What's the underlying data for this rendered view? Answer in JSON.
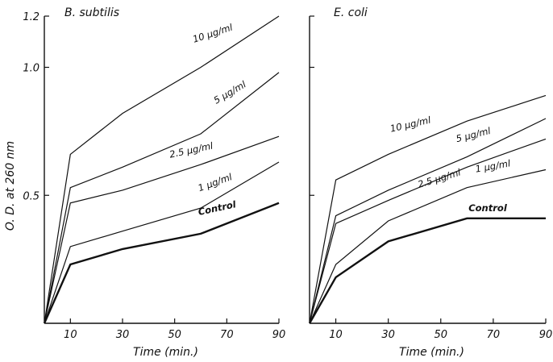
{
  "chart_data": [
    {
      "type": "line",
      "title": "B. subtilis",
      "xlabel": "Time   (min.)",
      "ylabel": "O. D.  at  260 nm",
      "xlim": [
        0,
        90
      ],
      "ylim": [
        0,
        1.2
      ],
      "x_ticks": [
        10,
        30,
        50,
        70,
        90
      ],
      "y_ticks": [
        0.5,
        1.0,
        1.2
      ],
      "y_tick_labels": [
        "0.5",
        "1.0",
        "1.2"
      ],
      "x": [
        0,
        10,
        30,
        60,
        90
      ],
      "series": [
        {
          "name": "10 μg/ml",
          "values": [
            0,
            0.66,
            0.82,
            1.0,
            1.2
          ]
        },
        {
          "name": "5 μg/ml",
          "values": [
            0,
            0.53,
            0.61,
            0.74,
            0.98
          ]
        },
        {
          "name": "2.5 μg/ml",
          "values": [
            0,
            0.47,
            0.52,
            0.62,
            0.73
          ]
        },
        {
          "name": "1 μg/ml",
          "values": [
            0,
            0.3,
            0.36,
            0.45,
            0.63
          ]
        },
        {
          "name": "Control",
          "values": [
            0,
            0.23,
            0.29,
            0.35,
            0.47
          ]
        }
      ]
    },
    {
      "type": "line",
      "title": "E. coli",
      "xlabel": "Time   (min.)",
      "ylabel": "",
      "xlim": [
        0,
        90
      ],
      "ylim": [
        0,
        1.2
      ],
      "x_ticks": [
        10,
        30,
        50,
        70,
        90
      ],
      "y_ticks": [
        0.5,
        1.0,
        1.2
      ],
      "y_tick_labels": [
        "",
        "",
        ""
      ],
      "x": [
        0,
        10,
        30,
        60,
        90
      ],
      "series": [
        {
          "name": "10 μg/ml",
          "values": [
            0,
            0.56,
            0.66,
            0.79,
            0.89
          ]
        },
        {
          "name": "5 μg/ml",
          "values": [
            0,
            0.42,
            0.52,
            0.65,
            0.8
          ]
        },
        {
          "name": "2.5 μg/ml",
          "values": [
            0,
            0.39,
            0.48,
            0.61,
            0.72
          ]
        },
        {
          "name": "1 μg/ml",
          "values": [
            0,
            0.23,
            0.4,
            0.53,
            0.6
          ]
        },
        {
          "name": "Control",
          "values": [
            0,
            0.18,
            0.32,
            0.41,
            0.41
          ]
        }
      ]
    }
  ]
}
